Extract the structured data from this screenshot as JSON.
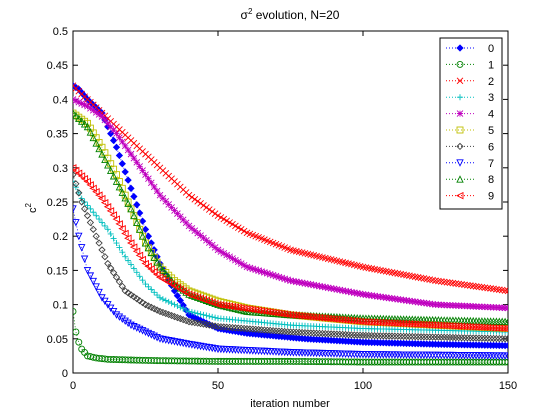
{
  "chart_data": {
    "type": "line",
    "title_base": "σ",
    "title_sup": "2",
    "title_rest": " evolution, N=20",
    "xlabel": "iteration number",
    "ylabel_base": "c",
    "ylabel_sup": "2",
    "xlim": [
      0,
      150
    ],
    "ylim": [
      0,
      0.5
    ],
    "xticks": [
      0,
      50,
      100,
      150
    ],
    "xtick_labels": [
      "0",
      "50",
      "100",
      "150"
    ],
    "yticks": [
      0,
      0.05,
      0.1,
      0.15,
      0.2,
      0.25,
      0.3,
      0.35,
      0.4,
      0.45,
      0.5
    ],
    "ytick_labels": [
      "0",
      "0.05",
      "0.1",
      "0.15",
      "0.2",
      "0.25",
      "0.3",
      "0.35",
      "0.4",
      "0.45",
      "0.5"
    ],
    "grid": false,
    "legend_position": "top-right",
    "series": [
      {
        "name": "0",
        "color": "#0000ff",
        "marker": "diamond-filled",
        "x": [
          0,
          2,
          5,
          10,
          15,
          20,
          25,
          30,
          35,
          40,
          50,
          60,
          80,
          100,
          125,
          150
        ],
        "values": [
          0.42,
          0.415,
          0.4,
          0.38,
          0.33,
          0.27,
          0.21,
          0.16,
          0.12,
          0.085,
          0.065,
          0.058,
          0.05,
          0.045,
          0.042,
          0.04
        ]
      },
      {
        "name": "1",
        "color": "#008000",
        "marker": "circle",
        "x": [
          0,
          1,
          2,
          3,
          5,
          8,
          12,
          20,
          30,
          50,
          75,
          100,
          125,
          150
        ],
        "values": [
          0.09,
          0.06,
          0.045,
          0.035,
          0.025,
          0.022,
          0.02,
          0.019,
          0.018,
          0.017,
          0.017,
          0.016,
          0.016,
          0.016
        ]
      },
      {
        "name": "2",
        "color": "#ff0000",
        "marker": "x",
        "x": [
          0,
          5,
          10,
          20,
          30,
          40,
          50,
          60,
          75,
          100,
          125,
          150
        ],
        "values": [
          0.42,
          0.4,
          0.38,
          0.34,
          0.3,
          0.26,
          0.23,
          0.205,
          0.18,
          0.155,
          0.135,
          0.12
        ]
      },
      {
        "name": "3",
        "color": "#00bfbf",
        "marker": "plus",
        "x": [
          0,
          3,
          8,
          12,
          18,
          25,
          30,
          40,
          50,
          75,
          100,
          150
        ],
        "values": [
          0.28,
          0.255,
          0.23,
          0.21,
          0.17,
          0.13,
          0.11,
          0.09,
          0.08,
          0.07,
          0.065,
          0.06
        ]
      },
      {
        "name": "4",
        "color": "#bf00bf",
        "marker": "star",
        "x": [
          0,
          5,
          10,
          15,
          20,
          25,
          30,
          40,
          50,
          60,
          75,
          100,
          125,
          150
        ],
        "values": [
          0.4,
          0.39,
          0.375,
          0.35,
          0.32,
          0.29,
          0.26,
          0.215,
          0.18,
          0.155,
          0.135,
          0.115,
          0.1,
          0.095
        ]
      },
      {
        "name": "5",
        "color": "#bfbf00",
        "marker": "square",
        "x": [
          0,
          5,
          10,
          15,
          20,
          25,
          30,
          35,
          40,
          50,
          60,
          75,
          100,
          150
        ],
        "values": [
          0.38,
          0.365,
          0.33,
          0.29,
          0.24,
          0.19,
          0.155,
          0.135,
          0.12,
          0.105,
          0.095,
          0.085,
          0.075,
          0.065
        ]
      },
      {
        "name": "6",
        "color": "#404040",
        "marker": "diamond",
        "x": [
          0,
          3,
          8,
          12,
          18,
          25,
          30,
          40,
          50,
          75,
          100,
          150
        ],
        "values": [
          0.29,
          0.25,
          0.2,
          0.16,
          0.12,
          0.1,
          0.09,
          0.075,
          0.068,
          0.06,
          0.055,
          0.05
        ]
      },
      {
        "name": "7",
        "color": "#0000ff",
        "marker": "triangle-down",
        "x": [
          0,
          2,
          5,
          10,
          15,
          20,
          25,
          30,
          40,
          50,
          75,
          100,
          150
        ],
        "values": [
          0.24,
          0.2,
          0.15,
          0.11,
          0.085,
          0.07,
          0.06,
          0.05,
          0.042,
          0.035,
          0.03,
          0.027,
          0.025
        ]
      },
      {
        "name": "8",
        "color": "#008000",
        "marker": "triangle-up",
        "x": [
          0,
          5,
          10,
          15,
          20,
          25,
          30,
          35,
          40,
          50,
          60,
          75,
          100,
          150
        ],
        "values": [
          0.38,
          0.36,
          0.32,
          0.28,
          0.24,
          0.19,
          0.155,
          0.13,
          0.115,
          0.1,
          0.09,
          0.085,
          0.08,
          0.075
        ]
      },
      {
        "name": "9",
        "color": "#ff0000",
        "marker": "triangle-left",
        "x": [
          0,
          5,
          10,
          15,
          20,
          25,
          30,
          40,
          50,
          75,
          100,
          150
        ],
        "values": [
          0.3,
          0.28,
          0.255,
          0.225,
          0.19,
          0.16,
          0.14,
          0.115,
          0.1,
          0.085,
          0.075,
          0.065
        ]
      }
    ]
  }
}
